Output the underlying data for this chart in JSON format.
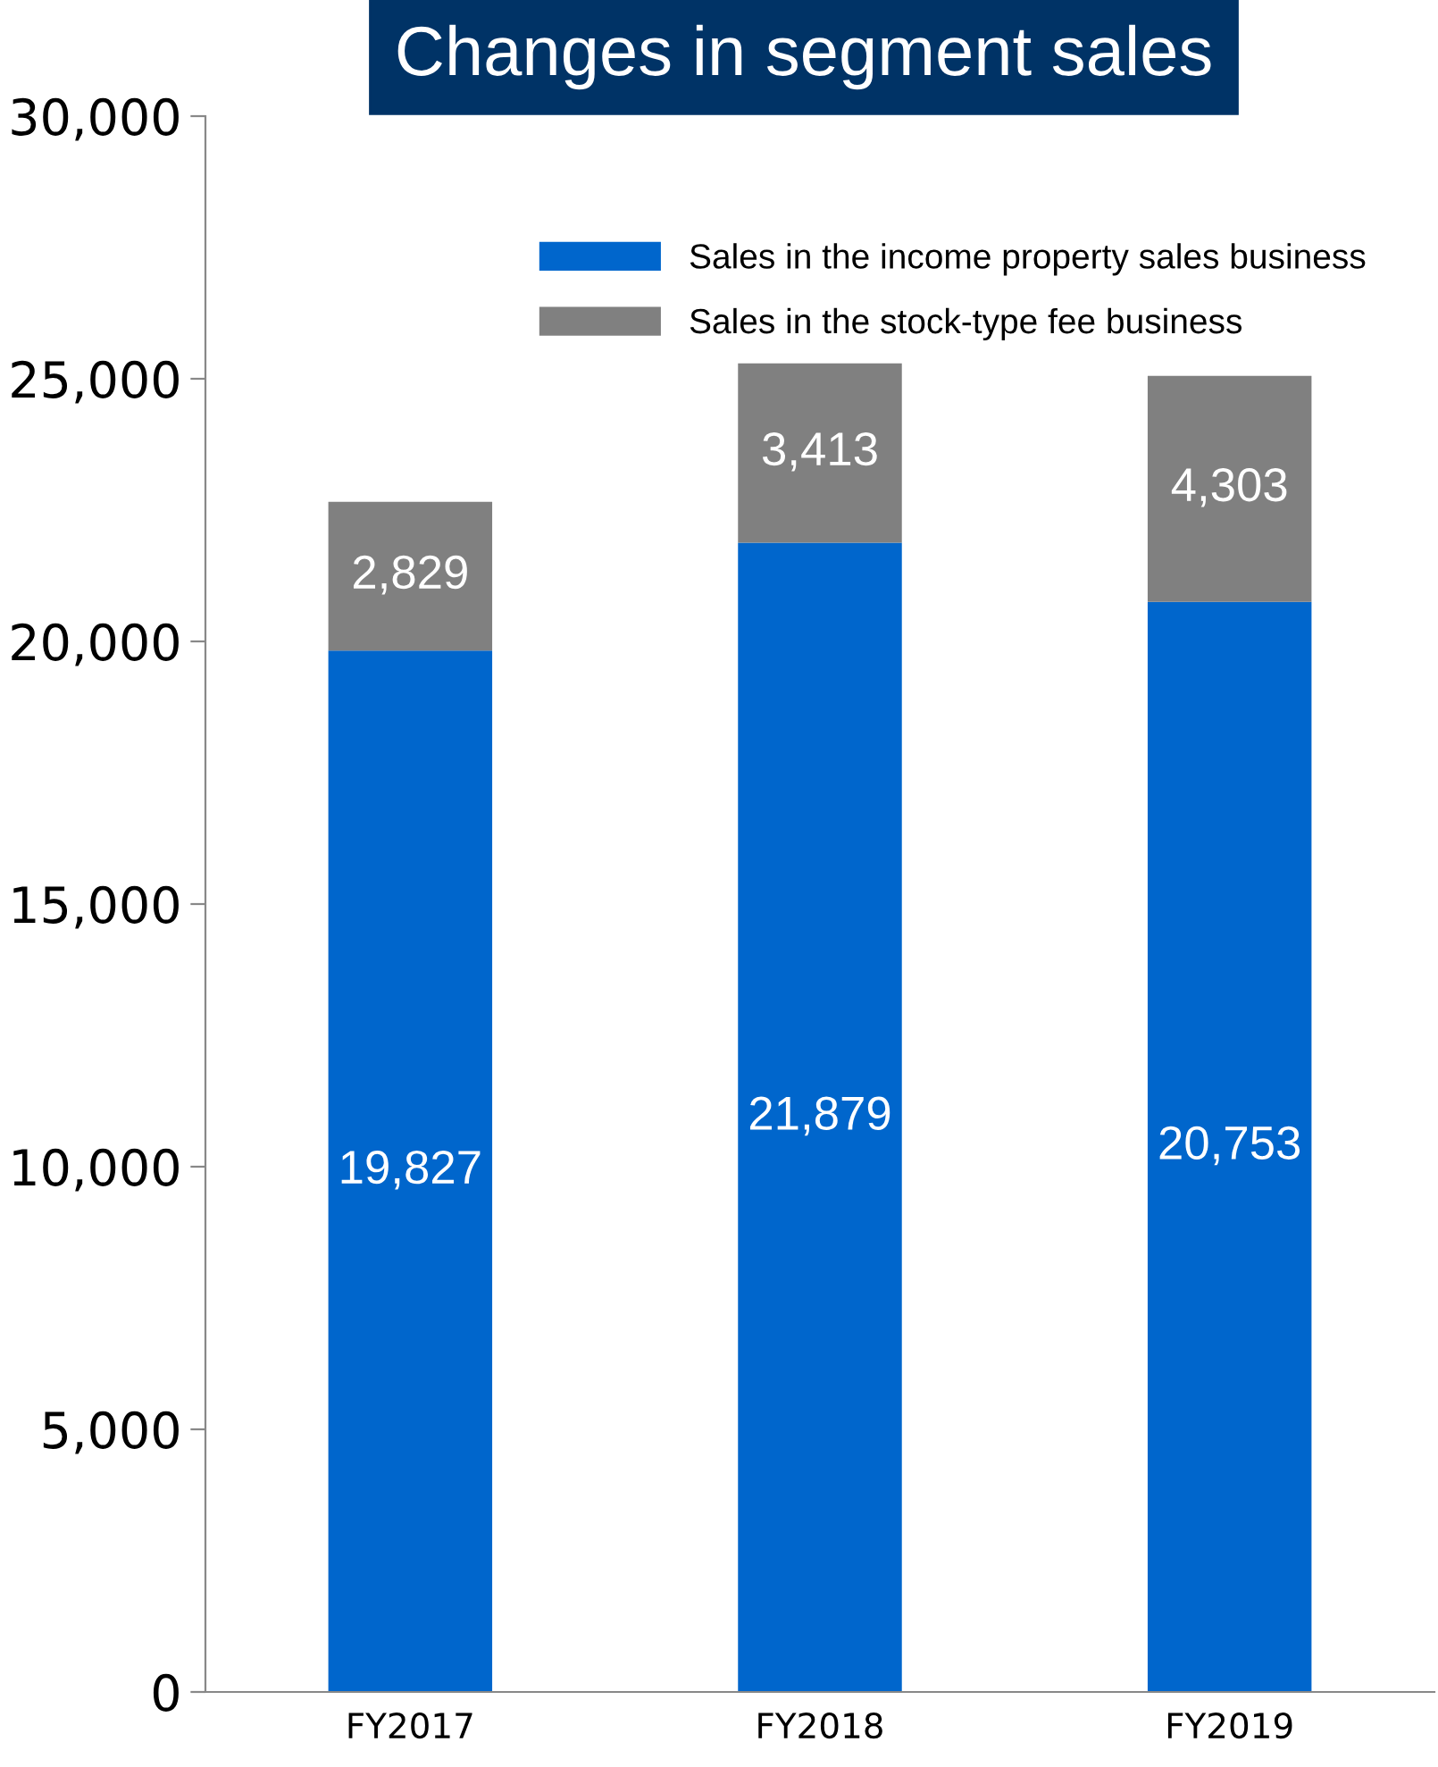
{
  "chart_data": {
    "type": "bar",
    "title": "Changes in segment sales",
    "categories": [
      "FY2017",
      "FY2018",
      "FY2019"
    ],
    "series": [
      {
        "name": "Sales in the income property sales business",
        "color": "#0066cc",
        "values": [
          19827,
          21879,
          20753
        ]
      },
      {
        "name": "Sales in the stock-type fee business",
        "color": "#808080",
        "values": [
          2829,
          3413,
          4303
        ]
      }
    ],
    "stacked": true,
    "ylim": [
      0,
      30000
    ],
    "yticks": [
      {
        "value": 0,
        "label": "0"
      },
      {
        "value": 5000,
        "label": "5,000"
      },
      {
        "value": 10000,
        "label": "10,000"
      },
      {
        "value": 15000,
        "label": "15,000"
      },
      {
        "value": 20000,
        "label": "20,000"
      },
      {
        "value": 25000,
        "label": "25,000"
      },
      {
        "value": 30000,
        "label": "30,000"
      }
    ],
    "value_labels": [
      [
        "19,827",
        "21,879",
        "20,753"
      ],
      [
        "2,829",
        "3,413",
        "4,303"
      ]
    ],
    "legend": "top right",
    "grid": false
  }
}
